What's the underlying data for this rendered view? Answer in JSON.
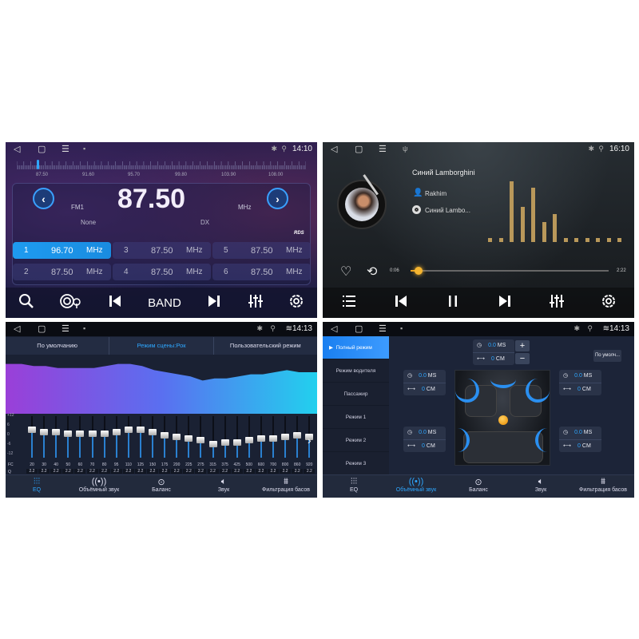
{
  "radio": {
    "time": "14:10",
    "ruler_labels": [
      "87.50",
      "91.60",
      "95.70",
      "99.80",
      "103.90",
      "108.00"
    ],
    "frequency": "87.50",
    "band": "FM1",
    "unit": "MHz",
    "ps": "None",
    "dx": "DX",
    "rds": "RDS",
    "presets": [
      {
        "n": "1",
        "f": "96.70",
        "u": "MHz",
        "active": true
      },
      {
        "n": "2",
        "f": "87.50",
        "u": "MHz"
      },
      {
        "n": "3",
        "f": "87.50",
        "u": "MHz"
      },
      {
        "n": "4",
        "f": "87.50",
        "u": "MHz"
      },
      {
        "n": "5",
        "f": "87.50",
        "u": "MHz"
      },
      {
        "n": "6",
        "f": "87.50",
        "u": "MHz"
      }
    ],
    "band_label": "BAND",
    "ruler_position_mhz": 87.5
  },
  "music": {
    "time": "16:10",
    "title": "Синий Lamborghini",
    "artist": "Rakhim",
    "album": "Синий Lambo...",
    "elapsed": "0:06",
    "duration": "2:22",
    "progress": 0.04,
    "spectrum": [
      0.06,
      0.06,
      1.0,
      0.58,
      0.9,
      0.33,
      0.46,
      0.06,
      0.06,
      0.06,
      0.06,
      0.06,
      0.06
    ],
    "spectrum_color": "#b9985a"
  },
  "eq": {
    "time": "14:13",
    "tabs": [
      "По умолчанию",
      "Режим сцены:Рок",
      "Пользовательский режим"
    ],
    "active_tab": 1,
    "scale": [
      "+12",
      "6",
      "0",
      "-6",
      "-12"
    ],
    "fc_label": "FC",
    "q_label": "Q",
    "freqs": [
      "20",
      "30",
      "40",
      "50",
      "60",
      "70",
      "80",
      "95",
      "110",
      "125",
      "150",
      "175",
      "200",
      "225",
      "275",
      "315",
      "375",
      "425",
      "500",
      "600",
      "700",
      "800",
      "860",
      "920"
    ],
    "q": "2.2",
    "levels": [
      4,
      3,
      3,
      2,
      2,
      2,
      2,
      3,
      4,
      4,
      3,
      1,
      0,
      -1,
      -2,
      -4,
      -3,
      -3,
      -2,
      -1,
      -1,
      0,
      1,
      0
    ]
  },
  "surround": {
    "time": "14:13",
    "modes": [
      "Полный режим",
      "Режим водителя",
      "Пассажир",
      "Режим 1",
      "Режим 2",
      "Режим 3"
    ],
    "default_btn": "По умолч...",
    "delay": "0.0",
    "delay_unit": "MS",
    "dist": "0",
    "dist_unit": "CM",
    "plus": "+",
    "minus": "−"
  },
  "nav": {
    "items": [
      "EQ",
      "Объёмный звук",
      "Баланс",
      "Звук",
      "Фильтрация басов"
    ]
  },
  "accent": "#2ea7ff"
}
